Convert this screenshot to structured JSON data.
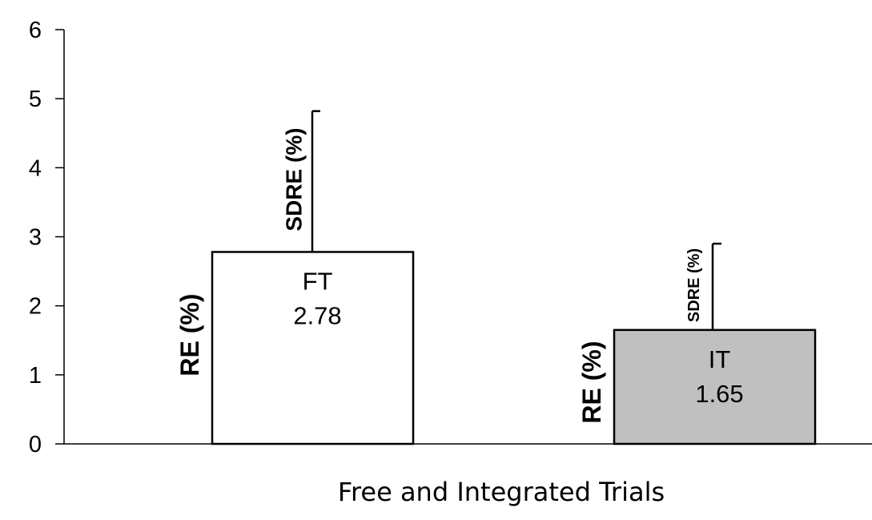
{
  "chart_data": {
    "type": "bar",
    "title": "",
    "xlabel": "Free and Integrated Trials",
    "ylabel": "",
    "ylim": [
      0,
      6
    ],
    "yticks": [
      0,
      1,
      2,
      3,
      4,
      5,
      6
    ],
    "grid": false,
    "legend": "none",
    "categories": [
      "FT",
      "IT"
    ],
    "values": [
      2.78,
      1.65
    ],
    "error_tops": [
      4.82,
      2.9
    ],
    "value_labels": [
      "2.78",
      "1.65"
    ],
    "bar_colors": [
      "#ffffff",
      "#c0c0c0"
    ],
    "bar_side_labels": [
      "RE (%)",
      "RE (%)"
    ],
    "error_labels": [
      "SDRE (%)",
      "SDRE (%)"
    ]
  }
}
